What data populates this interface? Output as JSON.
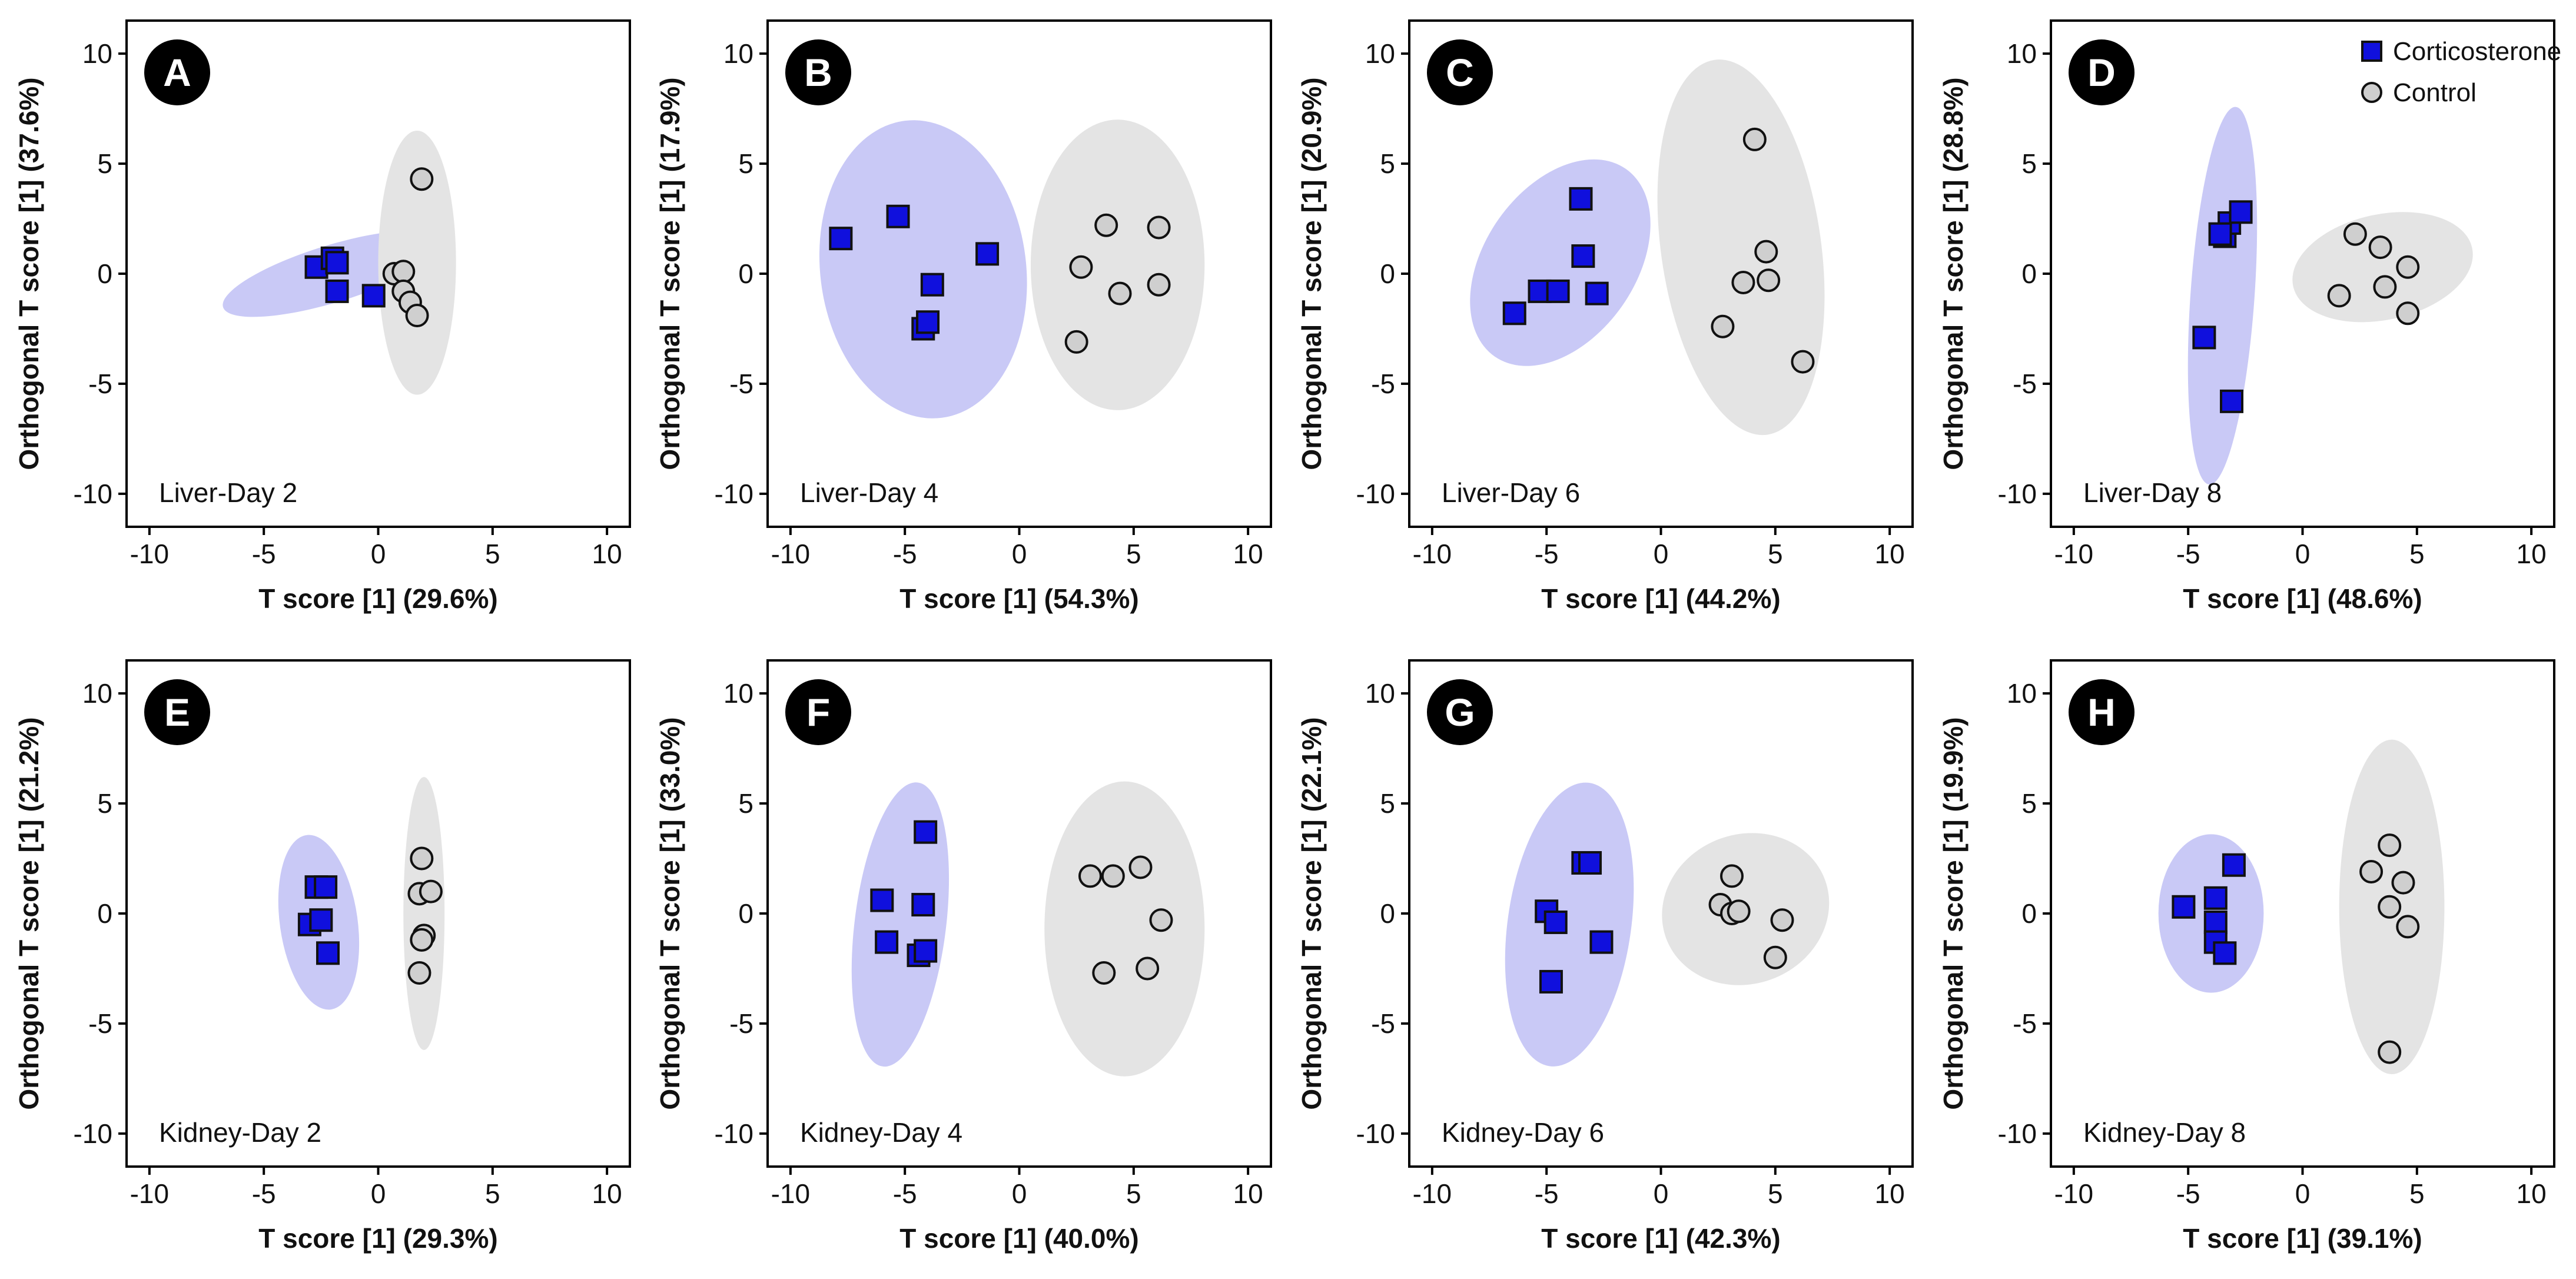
{
  "chart_data": {
    "type": "scatter",
    "legend": {
      "placement": "top-right of panel D",
      "entries": [
        {
          "name": "Corticosterone",
          "marker": "square",
          "fill": "#1010dd"
        },
        {
          "name": "Control",
          "marker": "circle",
          "fill": "#cfcfcf"
        }
      ]
    },
    "colors": {
      "corticosterone_marker": "#1010dd",
      "corticosterone_ellipse": "#c9c9f6",
      "control_marker": "#cfcfcf",
      "control_ellipse": "#e4e4e4",
      "badge": "#000000"
    },
    "panels": [
      {
        "letter": "A",
        "label": "Liver-Day 2",
        "xlabel": "T score [1] (29.6%)",
        "ylabel": "Orthogonal T score [1] (37.6%)",
        "xlim": [
          -11,
          11
        ],
        "ylim": [
          -11.5,
          11.5
        ],
        "xticks": [
          -10,
          -5,
          0,
          5,
          10
        ],
        "yticks": [
          10,
          5,
          0,
          -5,
          -10
        ],
        "series": [
          {
            "name": "Corticosterone",
            "points": [
              [
                -2.7,
                0.3
              ],
              [
                -2.0,
                0.7
              ],
              [
                -1.8,
                0.5
              ],
              [
                -1.8,
                -0.8
              ],
              [
                -0.2,
                -1.0
              ]
            ],
            "ellipse": {
              "cx": -2.0,
              "cy": 0.0,
              "rx": 5.0,
              "ry": 1.3,
              "angle": -17
            }
          },
          {
            "name": "Control",
            "points": [
              [
                0.7,
                0.0
              ],
              [
                1.1,
                0.1
              ],
              [
                1.1,
                -0.8
              ],
              [
                1.4,
                -1.3
              ],
              [
                1.7,
                -1.9
              ],
              [
                1.9,
                4.3
              ]
            ],
            "ellipse": {
              "cx": 1.7,
              "cy": 0.5,
              "rx": 1.7,
              "ry": 6.0,
              "angle": 0
            }
          }
        ]
      },
      {
        "letter": "B",
        "label": "Liver-Day 4",
        "xlabel": "T score [1] (54.3%)",
        "ylabel": "Orthogonal T score [1] (17.9%)",
        "xlim": [
          -11,
          11
        ],
        "ylim": [
          -11.5,
          11.5
        ],
        "xticks": [
          -10,
          -5,
          0,
          5,
          10
        ],
        "yticks": [
          10,
          5,
          0,
          -5,
          -10
        ],
        "series": [
          {
            "name": "Corticosterone",
            "points": [
              [
                -7.8,
                1.6
              ],
              [
                -5.3,
                2.6
              ],
              [
                -3.8,
                -0.5
              ],
              [
                -4.2,
                -2.5
              ],
              [
                -4.0,
                -2.2
              ],
              [
                -1.4,
                0.9
              ]
            ],
            "ellipse": {
              "cx": -4.2,
              "cy": 0.2,
              "rx": 4.5,
              "ry": 6.8,
              "angle": -7
            }
          },
          {
            "name": "Control",
            "points": [
              [
                2.7,
                0.3
              ],
              [
                3.8,
                2.2
              ],
              [
                6.1,
                2.1
              ],
              [
                4.4,
                -0.9
              ],
              [
                6.1,
                -0.5
              ],
              [
                2.5,
                -3.1
              ]
            ],
            "ellipse": {
              "cx": 4.3,
              "cy": 0.4,
              "rx": 3.8,
              "ry": 6.6,
              "angle": 0
            }
          }
        ]
      },
      {
        "letter": "C",
        "label": "Liver-Day 6",
        "xlabel": "T score [1] (44.2%)",
        "ylabel": "Orthogonal T score [1] (20.9%)",
        "xlim": [
          -11,
          11
        ],
        "ylim": [
          -11.5,
          11.5
        ],
        "xticks": [
          -10,
          -5,
          0,
          5,
          10
        ],
        "yticks": [
          10,
          5,
          0,
          -5,
          -10
        ],
        "series": [
          {
            "name": "Corticosterone",
            "points": [
              [
                -6.4,
                -1.8
              ],
              [
                -5.3,
                -0.8
              ],
              [
                -4.5,
                -0.8
              ],
              [
                -3.5,
                3.4
              ],
              [
                -3.4,
                0.8
              ],
              [
                -2.8,
                -0.9
              ]
            ],
            "ellipse": {
              "cx": -4.4,
              "cy": 0.5,
              "rx": 3.3,
              "ry": 5.2,
              "angle": 35
            }
          },
          {
            "name": "Control",
            "points": [
              [
                4.1,
                6.1
              ],
              [
                4.6,
                1.0
              ],
              [
                3.6,
                -0.4
              ],
              [
                4.7,
                -0.3
              ],
              [
                2.7,
                -2.4
              ],
              [
                6.2,
                -4.0
              ]
            ],
            "ellipse": {
              "cx": 3.5,
              "cy": 1.2,
              "rx": 3.5,
              "ry": 8.6,
              "angle": -8
            }
          }
        ]
      },
      {
        "letter": "D",
        "label": "Liver-Day 8",
        "xlabel": "T score [1] (48.6%)",
        "ylabel": "Orthogonal T score [1] (28.8%)",
        "xlim": [
          -11,
          11
        ],
        "ylim": [
          -11.5,
          11.5
        ],
        "xticks": [
          -10,
          -5,
          0,
          5,
          10
        ],
        "yticks": [
          10,
          5,
          0,
          -5,
          -10
        ],
        "series": [
          {
            "name": "Corticosterone",
            "points": [
              [
                -3.4,
                1.7
              ],
              [
                -3.2,
                2.3
              ],
              [
                -2.7,
                2.8
              ],
              [
                -4.3,
                -2.9
              ],
              [
                -3.1,
                -5.8
              ],
              [
                -3.6,
                1.8
              ]
            ],
            "ellipse": {
              "cx": -3.5,
              "cy": -1.0,
              "rx": 1.4,
              "ry": 8.6,
              "angle": 4
            }
          },
          {
            "name": "Control",
            "points": [
              [
                1.6,
                -1.0
              ],
              [
                2.3,
                1.8
              ],
              [
                3.4,
                1.2
              ],
              [
                4.6,
                0.3
              ],
              [
                3.6,
                -0.6
              ],
              [
                4.6,
                -1.8
              ]
            ],
            "ellipse": {
              "cx": 3.5,
              "cy": 0.3,
              "rx": 4.0,
              "ry": 2.4,
              "angle": -12
            }
          }
        ]
      },
      {
        "letter": "E",
        "label": "Kidney-Day 2",
        "xlabel": "T score [1] (29.3%)",
        "ylabel": "Orthogonal T score [1] (21.2%)",
        "xlim": [
          -11,
          11
        ],
        "ylim": [
          -11.5,
          11.5
        ],
        "xticks": [
          -10,
          -5,
          0,
          5,
          10
        ],
        "yticks": [
          10,
          5,
          0,
          -5,
          -10
        ],
        "series": [
          {
            "name": "Corticosterone",
            "points": [
              [
                -2.7,
                1.2
              ],
              [
                -2.3,
                1.2
              ],
              [
                -3.0,
                -0.5
              ],
              [
                -2.5,
                -0.3
              ],
              [
                -2.2,
                -1.8
              ]
            ],
            "ellipse": {
              "cx": -2.6,
              "cy": -0.4,
              "rx": 1.7,
              "ry": 4.0,
              "angle": -8
            }
          },
          {
            "name": "Control",
            "points": [
              [
                1.9,
                2.5
              ],
              [
                1.8,
                0.9
              ],
              [
                2.3,
                1.0
              ],
              [
                2.0,
                -1.0
              ],
              [
                1.9,
                -1.2
              ],
              [
                1.8,
                -2.7
              ]
            ],
            "ellipse": {
              "cx": 2.0,
              "cy": 0.0,
              "rx": 0.9,
              "ry": 6.2,
              "angle": 0
            }
          }
        ]
      },
      {
        "letter": "F",
        "label": "Kidney-Day 4",
        "xlabel": "T score [1] (40.0%)",
        "ylabel": "Orthogonal T score [1] (33.0%)",
        "xlim": [
          -11,
          11
        ],
        "ylim": [
          -11.5,
          11.5
        ],
        "xticks": [
          -10,
          -5,
          0,
          5,
          10
        ],
        "yticks": [
          10,
          5,
          0,
          -5,
          -10
        ],
        "series": [
          {
            "name": "Corticosterone",
            "points": [
              [
                -4.1,
                3.7
              ],
              [
                -6.0,
                0.6
              ],
              [
                -4.2,
                0.4
              ],
              [
                -5.8,
                -1.3
              ],
              [
                -4.4,
                -1.9
              ],
              [
                -4.1,
                -1.7
              ]
            ],
            "ellipse": {
              "cx": -5.2,
              "cy": -0.5,
              "rx": 2.0,
              "ry": 6.5,
              "angle": 7
            }
          },
          {
            "name": "Control",
            "points": [
              [
                3.1,
                1.7
              ],
              [
                4.1,
                1.7
              ],
              [
                5.3,
                2.1
              ],
              [
                6.2,
                -0.3
              ],
              [
                3.7,
                -2.7
              ],
              [
                5.6,
                -2.5
              ]
            ],
            "ellipse": {
              "cx": 4.6,
              "cy": -0.7,
              "rx": 3.5,
              "ry": 6.7,
              "angle": 0
            }
          }
        ]
      },
      {
        "letter": "G",
        "label": "Kidney-Day 6",
        "xlabel": "T score [1] (42.3%)",
        "ylabel": "Orthogonal T score [1] (22.1%)",
        "xlim": [
          -11,
          11
        ],
        "ylim": [
          -11.5,
          11.5
        ],
        "xticks": [
          -10,
          -5,
          0,
          5,
          10
        ],
        "yticks": [
          10,
          5,
          0,
          -5,
          -10
        ],
        "series": [
          {
            "name": "Corticosterone",
            "points": [
              [
                -3.4,
                2.3
              ],
              [
                -3.1,
                2.3
              ],
              [
                -5.0,
                0.1
              ],
              [
                -4.6,
                -0.4
              ],
              [
                -2.6,
                -1.3
              ],
              [
                -4.8,
                -3.1
              ]
            ],
            "ellipse": {
              "cx": -4.0,
              "cy": -0.5,
              "rx": 2.7,
              "ry": 6.5,
              "angle": 8
            }
          },
          {
            "name": "Control",
            "points": [
              [
                2.6,
                0.4
              ],
              [
                3.1,
                1.7
              ],
              [
                3.1,
                0.0
              ],
              [
                3.4,
                0.1
              ],
              [
                5.3,
                -0.3
              ],
              [
                5.0,
                -2.0
              ]
            ],
            "ellipse": {
              "cx": 3.7,
              "cy": 0.2,
              "rx": 3.7,
              "ry": 3.4,
              "angle": -20
            }
          }
        ]
      },
      {
        "letter": "H",
        "label": "Kidney-Day 8",
        "xlabel": "T score [1] (39.1%)",
        "ylabel": "Orthogonal T score [1] (19.9%)",
        "xlim": [
          -11,
          11
        ],
        "ylim": [
          -11.5,
          11.5
        ],
        "xticks": [
          -10,
          -5,
          0,
          5,
          10
        ],
        "yticks": [
          10,
          5,
          0,
          -5,
          -10
        ],
        "series": [
          {
            "name": "Corticosterone",
            "points": [
              [
                -5.2,
                0.3
              ],
              [
                -3.8,
                0.7
              ],
              [
                -3.8,
                -0.4
              ],
              [
                -3.8,
                -1.3
              ],
              [
                -3.4,
                -1.8
              ],
              [
                -3.0,
                2.2
              ]
            ],
            "ellipse": {
              "cx": -4.0,
              "cy": 0.0,
              "rx": 2.3,
              "ry": 3.6,
              "angle": 0
            }
          },
          {
            "name": "Control",
            "points": [
              [
                3.0,
                1.9
              ],
              [
                3.8,
                3.1
              ],
              [
                4.4,
                1.4
              ],
              [
                3.8,
                0.3
              ],
              [
                4.6,
                -0.6
              ],
              [
                3.8,
                -6.3
              ]
            ],
            "ellipse": {
              "cx": 3.9,
              "cy": 0.3,
              "rx": 2.3,
              "ry": 7.6,
              "angle": 0
            }
          }
        ]
      }
    ]
  }
}
